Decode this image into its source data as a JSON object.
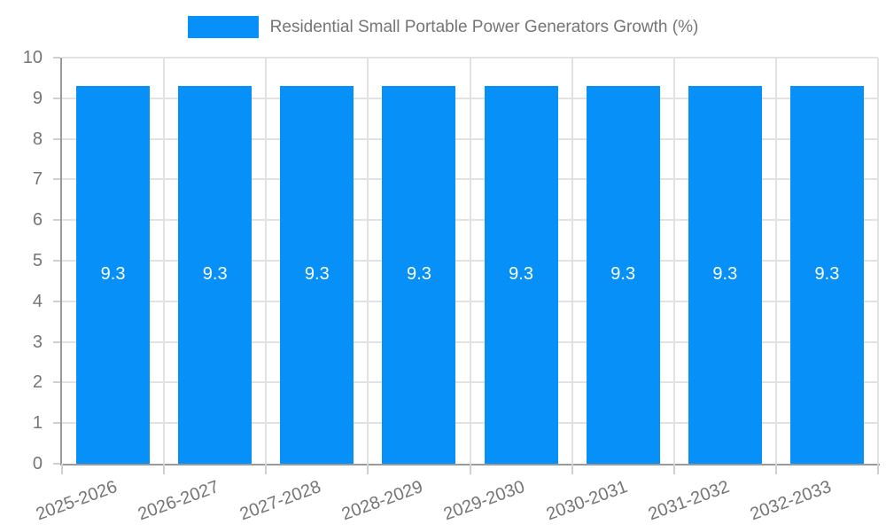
{
  "chart_data": {
    "type": "bar",
    "title": "Residential Small Portable Power Generators Growth (%)",
    "categories": [
      "2025-2026",
      "2026-2027",
      "2027-2028",
      "2028-2029",
      "2029-2030",
      "2030-2031",
      "2031-2032",
      "2032-2033"
    ],
    "values": [
      9.3,
      9.3,
      9.3,
      9.3,
      9.3,
      9.3,
      9.3,
      9.3
    ],
    "value_labels": [
      "9.3",
      "9.3",
      "9.3",
      "9.3",
      "9.3",
      "9.3",
      "9.3",
      "9.3"
    ],
    "xlabel": "",
    "ylabel": "",
    "ylim": [
      0,
      10
    ],
    "yticks": [
      0,
      1,
      2,
      3,
      4,
      5,
      6,
      7,
      8,
      9,
      10
    ],
    "grid": true,
    "legend_position": "top",
    "colors": {
      "bar": "#0790f8",
      "bar_label": "#ffffff",
      "grid": "#e2e2e2",
      "axis": "#9a9a9a",
      "tick": "#cfcfcf",
      "text": "#757575",
      "background": "#ffffff"
    }
  }
}
